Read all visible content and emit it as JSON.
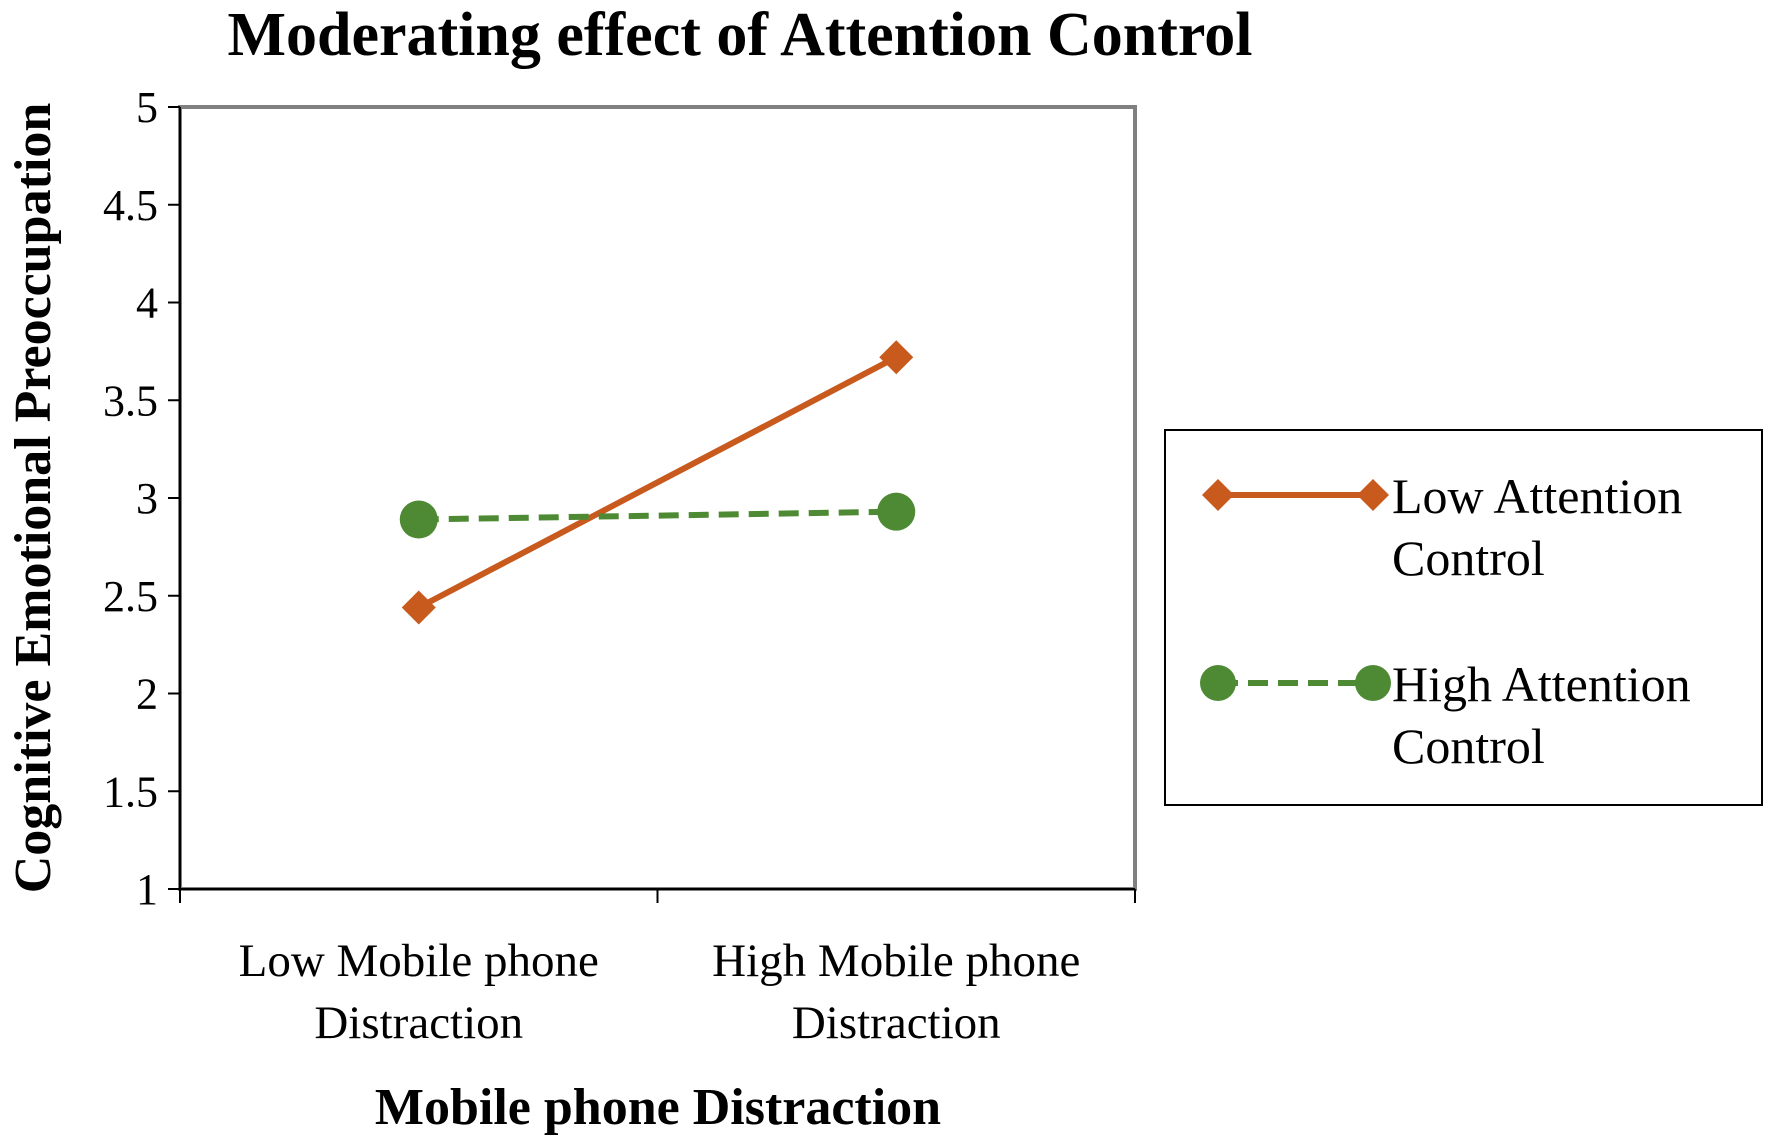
{
  "chart_data": {
    "type": "line",
    "title": "Moderating effect of Attention Control",
    "xlabel": "Mobile phone Distraction",
    "ylabel": "Cognitive Emotional Preoccupation",
    "categories": [
      [
        "Low Mobile phone",
        "Distraction"
      ],
      [
        "High Mobile phone",
        "Distraction"
      ]
    ],
    "ylim": [
      1,
      5
    ],
    "yticks": [
      "1",
      "1.5",
      "2",
      "2.5",
      "3",
      "3.5",
      "4",
      "4.5",
      "5"
    ],
    "grid": false,
    "legend_position": "right",
    "series": [
      {
        "name": [
          "Low Attention",
          "Control"
        ],
        "values": [
          2.44,
          3.72
        ],
        "color": "#c85a1e",
        "marker": "diamond",
        "line": "solid"
      },
      {
        "name": [
          "High Attention",
          "Control"
        ],
        "values": [
          2.89,
          2.93
        ],
        "color": "#4e8a33",
        "marker": "circle",
        "line": "dashed"
      }
    ]
  }
}
